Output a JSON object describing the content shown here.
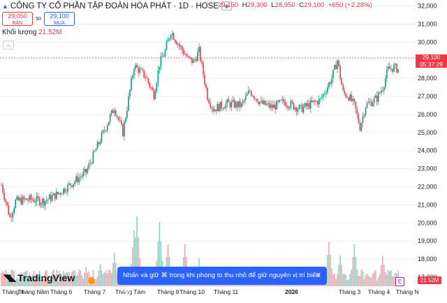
{
  "header": {
    "title": "CÔNG TY CỔ PHẦN TẬP ĐOÀN HÒA PHÁT · 1D · HOSE",
    "ohlc": {
      "o_label": "O",
      "o": "29,150",
      "h_label": "H",
      "h": "29,300",
      "l_label": "L",
      "l": "28,950",
      "c_label": "C",
      "c": "29,100",
      "change": "+650 (+2.28%)"
    }
  },
  "trade": {
    "sell_price": "29,050",
    "sell_label": "BÁN",
    "spread": "50",
    "buy_price": "29,100",
    "buy_label": "MUA"
  },
  "volume": {
    "label": "Khối lượng",
    "value": "21.52M"
  },
  "price_tag": {
    "price": "29,100",
    "countdown": "05:37:29"
  },
  "volume_tag": "21.52M",
  "brand": "TradingView",
  "toast": {
    "text": "Nhấn và giữ ⌘ trong khi phóng to thu nhỏ để giữ nguyên vị trí biểu đồ",
    "close": "✕"
  },
  "colors": {
    "up": "#089981",
    "down": "#f23645",
    "accent": "#2962ff",
    "grid": "#eef0f3",
    "axis_text": "#131722"
  },
  "chart_data": {
    "type": "candlestick",
    "y_axis": {
      "min": 17000,
      "max": 32000,
      "ticks": [
        32000,
        31000,
        30000,
        29000,
        28000,
        27000,
        26000,
        25000,
        24000,
        23000,
        22000,
        21000,
        20000,
        19000,
        18000,
        17000
      ]
    },
    "y_tick_labels": [
      "32,000",
      "31,000",
      "30,000",
      "29,000",
      "28,000",
      "27,000",
      "26,000",
      "25,000",
      "24,000",
      "23,000",
      "22,000",
      "21,000",
      "20,000",
      "19,000",
      "18,000",
      "17,000"
    ],
    "x_tick_labels": [
      "Tháng 4",
      "Tháng Năm",
      "Tháng 6",
      "Tháng 7",
      "Tháng Tám",
      "Tháng 9",
      "Tháng 10",
      "Tháng 11",
      "2026",
      "Tháng 3",
      "Tháng 4",
      "Tháng N"
    ],
    "last_close": 29100,
    "trend_points": [
      [
        0,
        22100
      ],
      [
        6,
        20300
      ],
      [
        10,
        21200
      ],
      [
        20,
        21300
      ],
      [
        30,
        21200
      ],
      [
        40,
        21600
      ],
      [
        50,
        22200
      ],
      [
        60,
        22800
      ],
      [
        70,
        24600
      ],
      [
        80,
        26400
      ],
      [
        86,
        25000
      ],
      [
        94,
        28700
      ],
      [
        102,
        28100
      ],
      [
        108,
        27100
      ],
      [
        112,
        28800
      ],
      [
        116,
        29500
      ],
      [
        120,
        30600
      ],
      [
        126,
        29800
      ],
      [
        132,
        29100
      ],
      [
        136,
        28900
      ],
      [
        140,
        29500
      ],
      [
        146,
        27000
      ],
      [
        150,
        26300
      ],
      [
        160,
        26600
      ],
      [
        170,
        26500
      ],
      [
        176,
        27300
      ],
      [
        184,
        26600
      ],
      [
        192,
        26400
      ],
      [
        200,
        26700
      ],
      [
        206,
        26500
      ],
      [
        212,
        26300
      ],
      [
        220,
        26600
      ],
      [
        226,
        26800
      ],
      [
        234,
        28000
      ],
      [
        238,
        29000
      ],
      [
        242,
        27200
      ],
      [
        246,
        27000
      ],
      [
        250,
        26500
      ],
      [
        254,
        25300
      ],
      [
        258,
        26500
      ],
      [
        262,
        26700
      ],
      [
        266,
        26900
      ],
      [
        270,
        27500
      ],
      [
        274,
        28500
      ],
      [
        278,
        28600
      ],
      [
        281,
        28500
      ]
    ],
    "volume_peaks_m": [
      [
        20,
        4
      ],
      [
        55,
        6
      ],
      [
        60,
        7
      ],
      [
        70,
        8
      ],
      [
        80,
        12
      ],
      [
        94,
        20
      ],
      [
        96,
        25
      ],
      [
        112,
        23
      ],
      [
        118,
        15
      ],
      [
        130,
        15
      ],
      [
        140,
        10
      ],
      [
        232,
        16
      ],
      [
        240,
        11
      ],
      [
        250,
        15
      ],
      [
        270,
        11
      ]
    ]
  }
}
